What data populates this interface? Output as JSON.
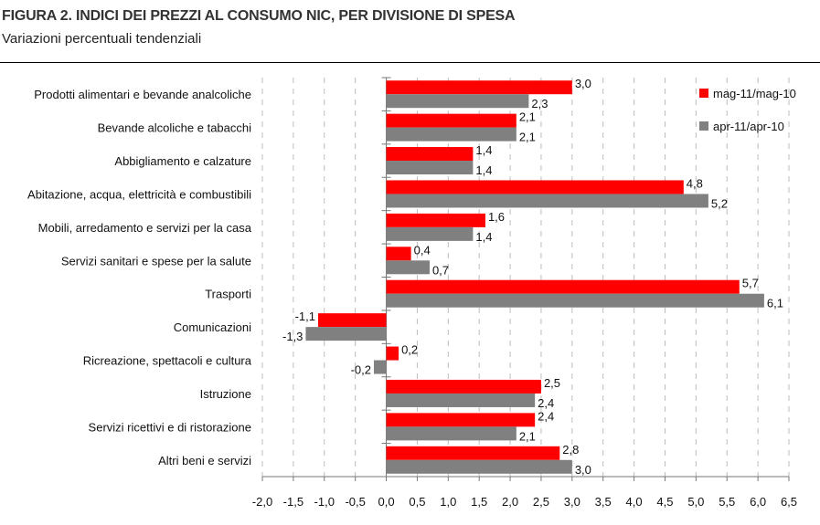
{
  "chart_data": {
    "type": "bar",
    "orientation": "horizontal",
    "title": "FIGURA 2. INDICI DEI PREZZI AL CONSUMO NIC, PER DIVISIONE DI SPESA",
    "subtitle": "Variazioni percentuali tendenziali",
    "categories": [
      "Prodotti alimentari e bevande analcoliche",
      "Bevande alcoliche e tabacchi",
      "Abbigliamento e calzature",
      "Abitazione, acqua, elettricità e combustibili",
      "Mobili, arredamento e servizi per la casa",
      "Servizi sanitari e spese per la salute",
      "Trasporti",
      "Comunicazioni",
      "Ricreazione, spettacoli e cultura",
      "Istruzione",
      "Servizi ricettivi e di ristorazione",
      "Altri beni e servizi"
    ],
    "series": [
      {
        "name": "mag-11/mag-10",
        "color": "#ff0000",
        "values": [
          3.0,
          2.1,
          1.4,
          4.8,
          1.6,
          0.4,
          5.7,
          -1.1,
          0.2,
          2.5,
          2.4,
          2.8
        ]
      },
      {
        "name": "apr-11/apr-10",
        "color": "#808080",
        "values": [
          2.3,
          2.1,
          1.4,
          5.2,
          1.4,
          0.7,
          6.1,
          -1.3,
          -0.2,
          2.4,
          2.1,
          3.0
        ]
      }
    ],
    "xlim": [
      -2.0,
      6.5
    ],
    "xticks": [
      "-2,0",
      "-1,5",
      "-1,0",
      "-0,5",
      "0,0",
      "0,5",
      "1,0",
      "1,5",
      "2,0",
      "2,5",
      "3,0",
      "3,5",
      "4,0",
      "4,5",
      "5,0",
      "5,5",
      "6,0",
      "6,5"
    ],
    "grid": "vertical dashed",
    "legend_position": "top-right",
    "decimal_separator": ","
  }
}
